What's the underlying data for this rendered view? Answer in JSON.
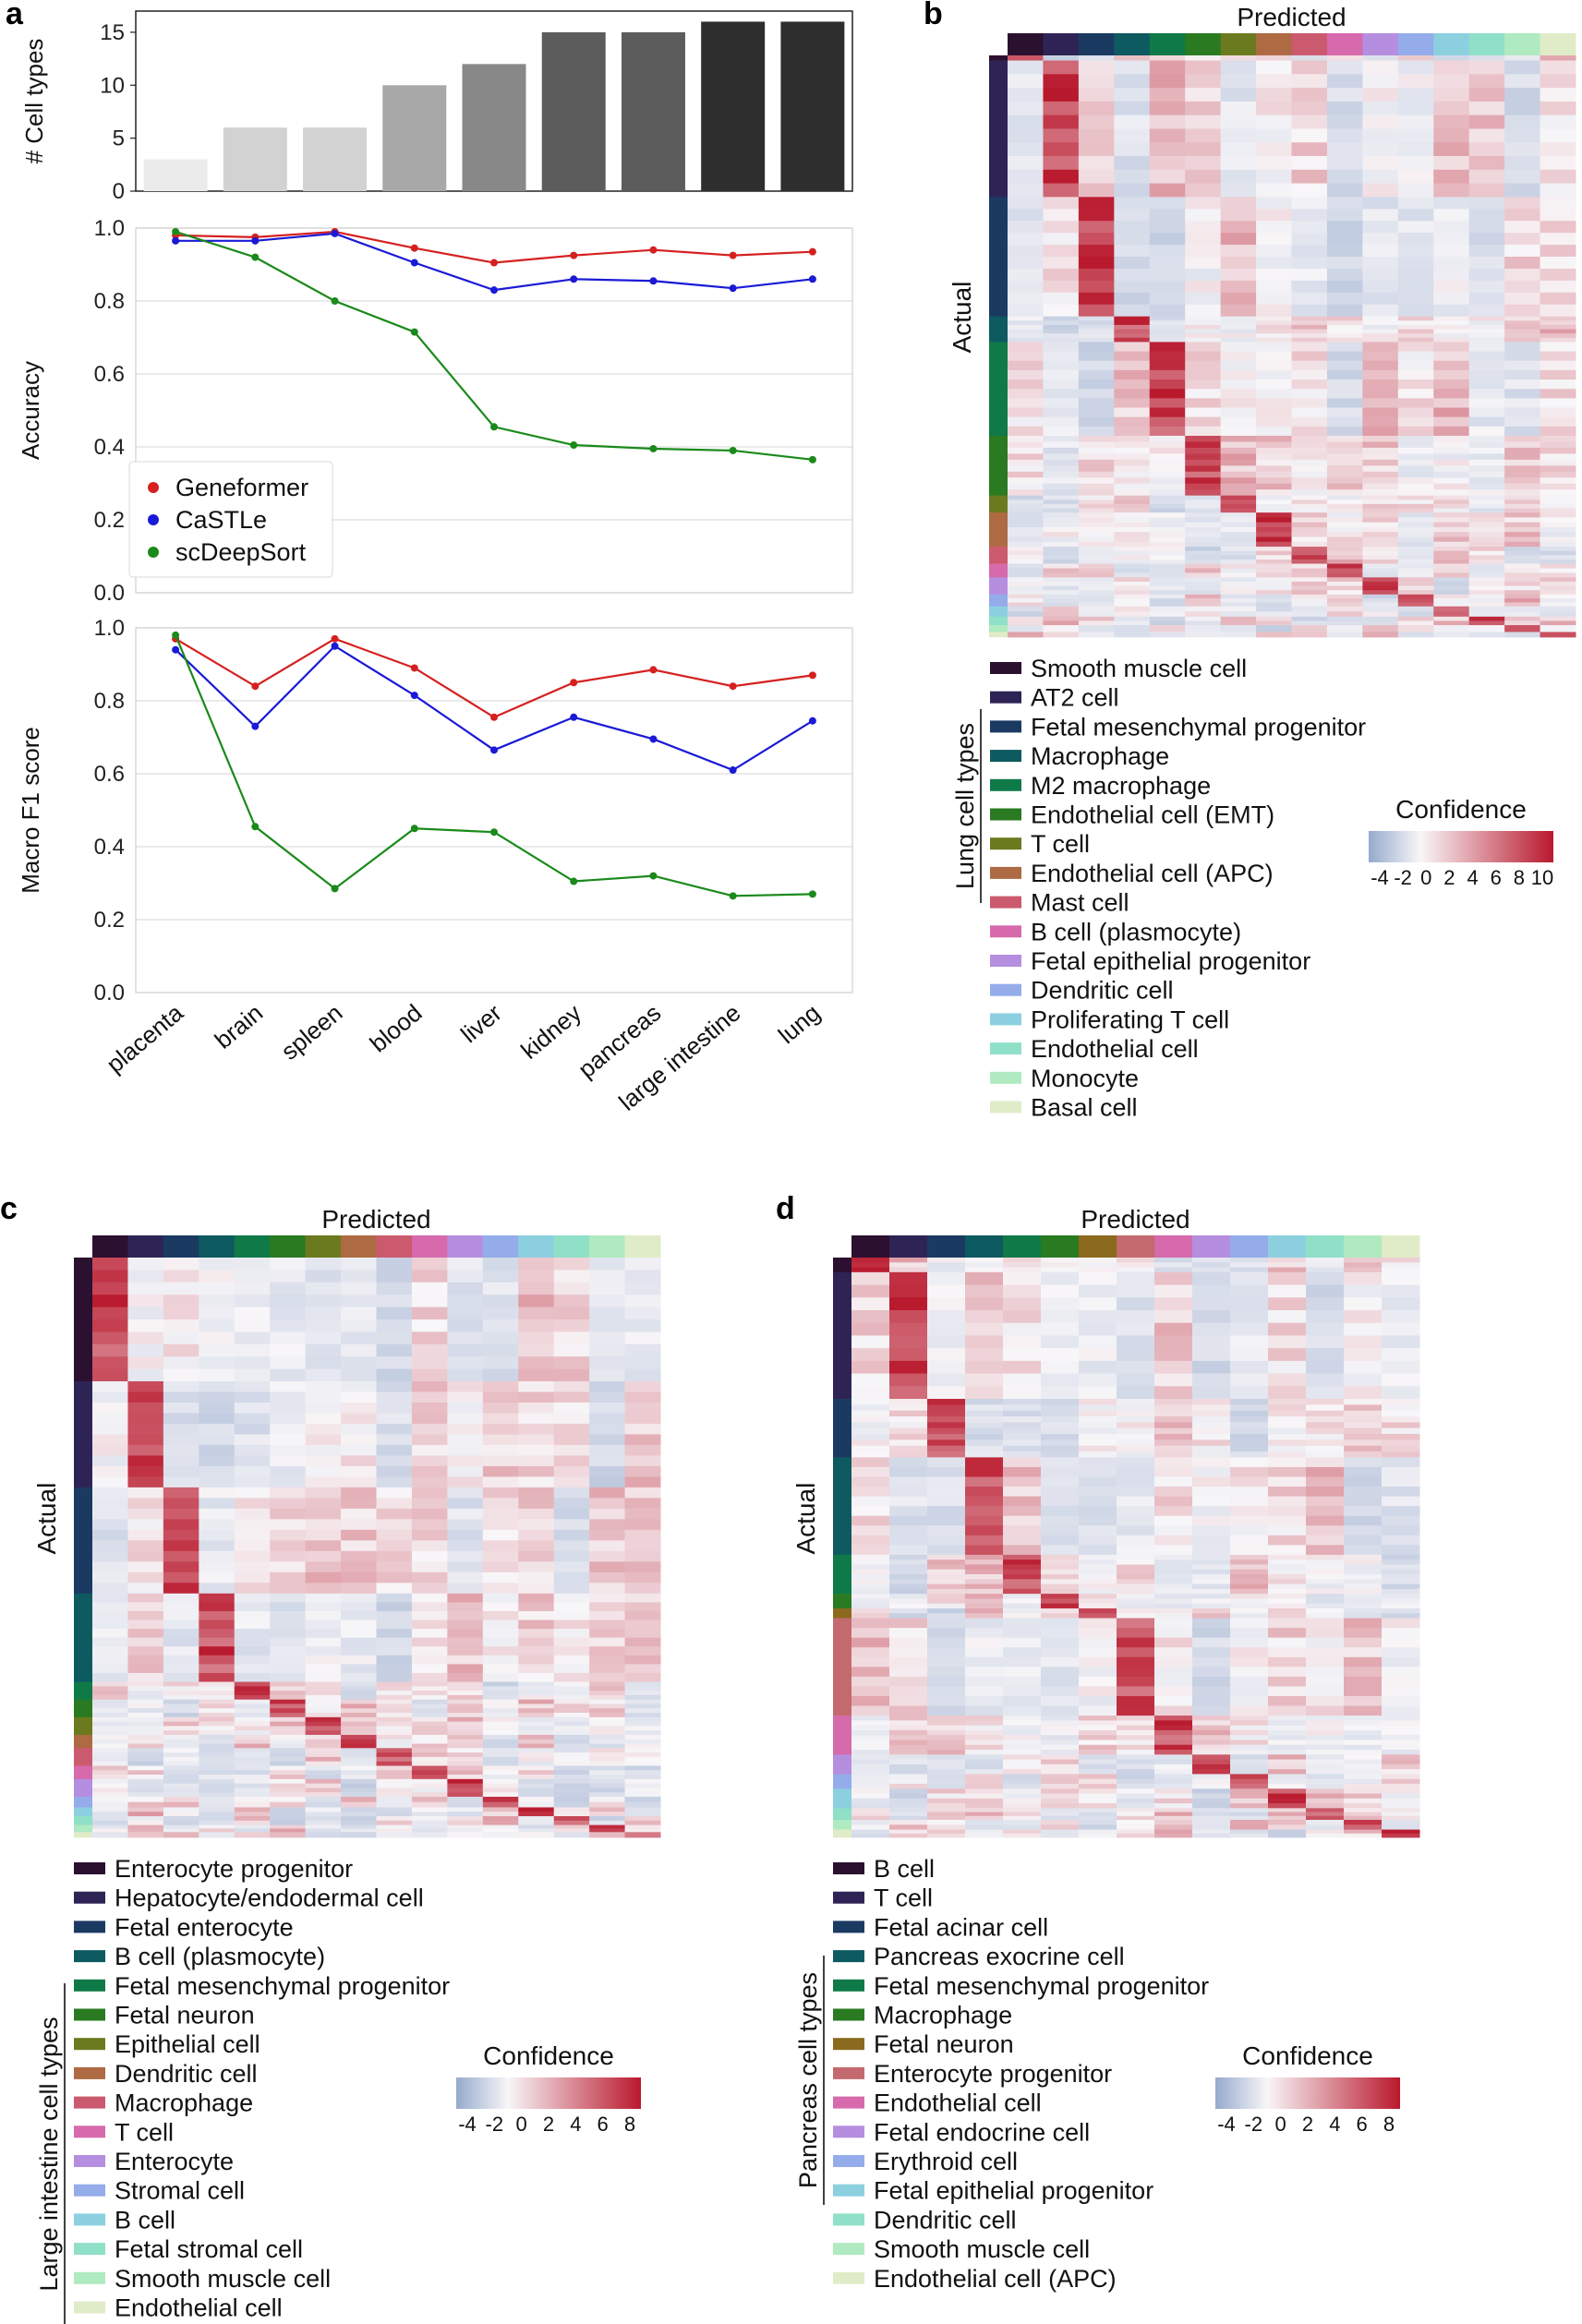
{
  "panel_labels": {
    "a": "a",
    "b": "b",
    "c": "c",
    "d": "d"
  },
  "chart_data": [
    {
      "id": "cell-types-bar",
      "type": "bar",
      "categories": [
        "placenta",
        "brain",
        "spleen",
        "blood",
        "liver",
        "kidney",
        "pancreas",
        "large intestine",
        "lung"
      ],
      "values": [
        3,
        6,
        6,
        10,
        12,
        15,
        15,
        16,
        16
      ],
      "bar_colors": [
        "#ebebeb",
        "#d2d2d2",
        "#d2d2d2",
        "#a8a8a8",
        "#888888",
        "#5c5c5c",
        "#5c5c5c",
        "#2e2e2e",
        "#2e2e2e"
      ],
      "ylabel": "# Cell types",
      "ylim": [
        0,
        17
      ],
      "yticks": [
        0,
        5,
        10,
        15
      ]
    },
    {
      "id": "accuracy-line",
      "type": "line",
      "categories": [
        "placenta",
        "brain",
        "spleen",
        "blood",
        "liver",
        "kidney",
        "pancreas",
        "large intestine",
        "lung"
      ],
      "series": [
        {
          "name": "Geneformer",
          "color": "#d62020",
          "values": [
            0.98,
            0.975,
            0.99,
            0.945,
            0.905,
            0.925,
            0.94,
            0.925,
            0.935
          ]
        },
        {
          "name": "CaSTLe",
          "color": "#1a1ad6",
          "values": [
            0.965,
            0.965,
            0.985,
            0.905,
            0.83,
            0.86,
            0.855,
            0.835,
            0.86
          ]
        },
        {
          "name": "scDeepSort",
          "color": "#1a8a1a",
          "values": [
            0.99,
            0.92,
            0.8,
            0.715,
            0.455,
            0.405,
            0.395,
            0.39,
            0.365
          ]
        }
      ],
      "ylabel": "Accuracy",
      "ylim": [
        0,
        1
      ],
      "yticks": [
        "0.0",
        "0.2",
        "0.4",
        "0.6",
        "0.8",
        "1.0"
      ],
      "legend": "lower-left"
    },
    {
      "id": "macro-f1-line",
      "type": "line",
      "categories": [
        "placenta",
        "brain",
        "spleen",
        "blood",
        "liver",
        "kidney",
        "pancreas",
        "large intestine",
        "lung"
      ],
      "series": [
        {
          "name": "Geneformer",
          "color": "#d62020",
          "values": [
            0.97,
            0.84,
            0.97,
            0.89,
            0.755,
            0.85,
            0.885,
            0.84,
            0.87
          ]
        },
        {
          "name": "CaSTLe",
          "color": "#1a1ad6",
          "values": [
            0.94,
            0.73,
            0.95,
            0.815,
            0.665,
            0.755,
            0.695,
            0.61,
            0.745
          ]
        },
        {
          "name": "scDeepSort",
          "color": "#1a8a1a",
          "values": [
            0.98,
            0.455,
            0.285,
            0.45,
            0.44,
            0.305,
            0.32,
            0.265,
            0.27
          ]
        }
      ],
      "ylabel": "Macro F1 score",
      "ylim": [
        0,
        1
      ],
      "yticks": [
        "0.0",
        "0.2",
        "0.4",
        "0.6",
        "0.8",
        "1.0"
      ]
    },
    {
      "id": "lung-heatmap",
      "type": "heatmap",
      "title": "Predicted",
      "ylabel": "Actual",
      "group_label": "Lung cell types",
      "colorbar_title": "Confidence",
      "colorbar_ticks": [
        "-4",
        "-2",
        "0",
        "2",
        "4",
        "6",
        "8",
        "10"
      ],
      "cell_types": [
        "Smooth muscle cell",
        "AT2 cell",
        "Fetal mesenchymal progenitor",
        "Macrophage",
        "M2 macrophage",
        "Endothelial cell (EMT)",
        "T cell",
        "Endothelial cell (APC)",
        "Mast cell",
        "B cell (plasmocyte)",
        "Fetal epithelial progenitor",
        "Dendritic cell",
        "Proliferating T cell",
        "Endothelial cell",
        "Monocyte",
        "Basal cell"
      ],
      "cell_type_colors": [
        "#2b1030",
        "#2d2455",
        "#1b3a62",
        "#0d5a60",
        "#0f7a48",
        "#2a7a22",
        "#6b7a1e",
        "#ae6a42",
        "#cc5a6e",
        "#d66aac",
        "#b58ee0",
        "#94acea",
        "#8cd0e0",
        "#90e0c8",
        "#b0eac0",
        "#e0ecc8"
      ],
      "row_weights": [
        0.6,
        16,
        14,
        3,
        11,
        7,
        2,
        4,
        2,
        1.6,
        2,
        1.4,
        1.2,
        1,
        0.8,
        0.6
      ]
    },
    {
      "id": "large-intestine-heatmap",
      "type": "heatmap",
      "title": "Predicted",
      "ylabel": "Actual",
      "group_label": "Large intestine cell types",
      "colorbar_title": "Confidence",
      "colorbar_ticks": [
        "-4",
        "-2",
        "0",
        "2",
        "4",
        "6",
        "8"
      ],
      "cell_types": [
        "Enterocyte progenitor",
        "Hepatocyte/endodermal cell",
        "Fetal enterocyte",
        "B cell (plasmocyte)",
        "Fetal mesenchymal progenitor",
        "Fetal neuron",
        "Epithelial cell",
        "Dendritic cell",
        "Macrophage",
        "T cell",
        "Enterocyte",
        "Stromal cell",
        "B cell",
        "Fetal stromal cell",
        "Smooth muscle cell",
        "Endothelial cell"
      ],
      "cell_type_colors": [
        "#2b1030",
        "#2d2455",
        "#1b3a62",
        "#0d5a60",
        "#0f7a48",
        "#2a7a22",
        "#6b7a1e",
        "#ae6a42",
        "#cc5a6e",
        "#d66aac",
        "#b58ee0",
        "#94acea",
        "#8cd0e0",
        "#90e0c8",
        "#b0eac0",
        "#e0ecc8"
      ],
      "row_weights": [
        14,
        12,
        12,
        10,
        2,
        2,
        2,
        1.5,
        2,
        1.5,
        2,
        1.2,
        1,
        1,
        0.8,
        0.6
      ]
    },
    {
      "id": "pancreas-heatmap",
      "type": "heatmap",
      "title": "Predicted",
      "ylabel": "Actual",
      "group_label": "Pancreas cell types",
      "colorbar_title": "Confidence",
      "colorbar_ticks": [
        "-4",
        "-2",
        "0",
        "2",
        "4",
        "6",
        "8"
      ],
      "cell_types": [
        "B cell",
        "T cell",
        "Fetal acinar cell",
        "Pancreas exocrine cell",
        "Fetal mesenchymal progenitor",
        "Macrophage",
        "Fetal neuron",
        "Enterocyte progenitor",
        "Endothelial cell",
        "Fetal endocrine cell",
        "Erythroid cell",
        "Fetal epithelial progenitor",
        "Dendritic cell",
        "Smooth muscle cell",
        "Endothelial cell (APC)"
      ],
      "cell_type_colors": [
        "#2b1030",
        "#2d2455",
        "#1b3a62",
        "#0d5a60",
        "#0f7a48",
        "#2a7a22",
        "#8b6a1e",
        "#c46a6e",
        "#d66aac",
        "#b58ee0",
        "#94acea",
        "#8cd0e0",
        "#90e0c8",
        "#b0eac0",
        "#e0ecc8"
      ],
      "row_weights": [
        1.5,
        13,
        6,
        10,
        4,
        1.5,
        1,
        10,
        4,
        2,
        1.5,
        2,
        1.2,
        1,
        0.8
      ]
    }
  ]
}
